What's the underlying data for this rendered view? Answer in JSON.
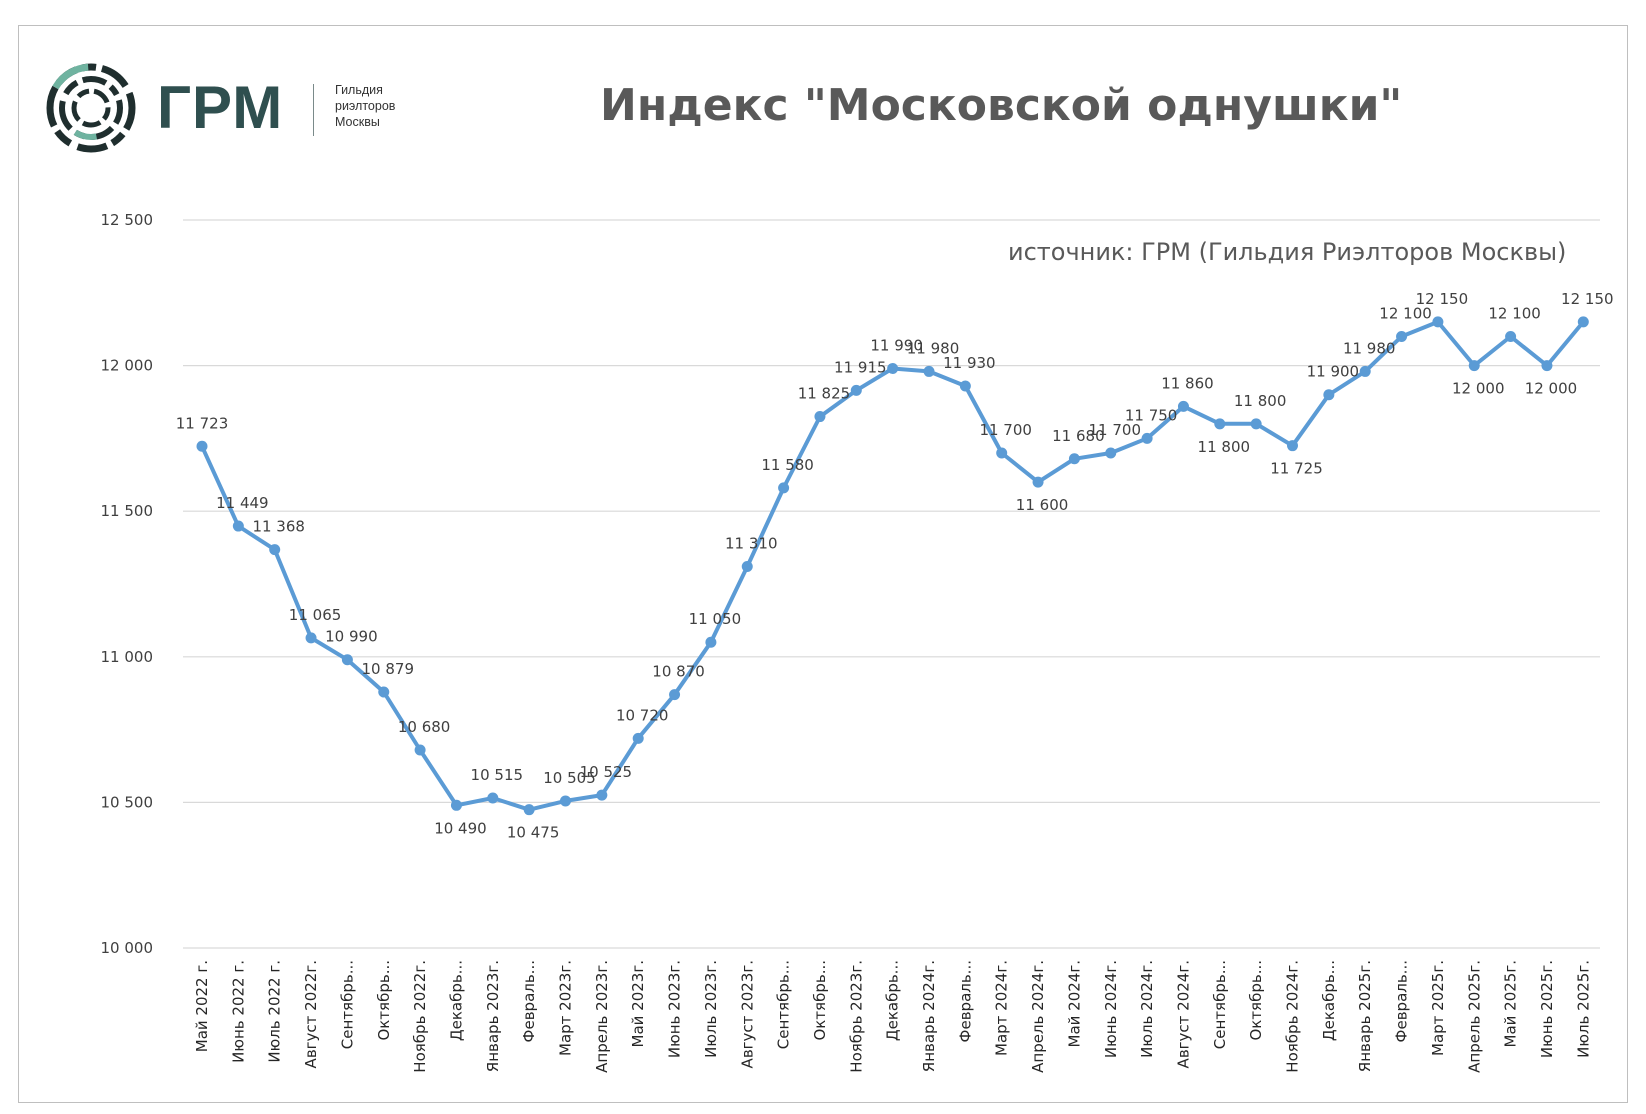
{
  "logo": {
    "name": "ГРМ",
    "subtitle": [
      "Гильдия",
      "риэлторов",
      "Москвы"
    ]
  },
  "header": {
    "title": "Индекс \"Московской однушки\"",
    "source": "источник: ГРМ (Гильдия Риэлторов Москвы)"
  },
  "colors": {
    "series": "#5b9bd5",
    "text": "#595959",
    "grid": "#d9d9d9",
    "brand": "#2f4f4f",
    "brand_accent": "#6fb3a0"
  },
  "chart_data": {
    "type": "line",
    "title": "Индекс \"Московской однушки\"",
    "xlabel": "",
    "ylabel": "",
    "ylim": [
      10000,
      12500
    ],
    "yticks": [
      10000,
      10500,
      11000,
      11500,
      12000,
      12500
    ],
    "ytick_labels": [
      "10 000",
      "10 500",
      "11 000",
      "11 500",
      "12 000",
      "12 500"
    ],
    "grid": true,
    "legend": "none",
    "categories": [
      "Май 2022 г.",
      "Июнь 2022 г.",
      "Июль 2022 г.",
      "Август 2022г.",
      "Сентябрь...",
      "Октябрь...",
      "Ноябрь 2022г.",
      "Декабрь...",
      "Январь 2023г.",
      "Февраль...",
      "Март 2023г.",
      "Апрель 2023г.",
      "Май 2023г.",
      "Июнь 2023г.",
      "Июль 2023г.",
      "Август 2023г.",
      "Сентябрь...",
      "Октябрь...",
      "Ноябрь 2023г.",
      "Декабрь...",
      "Январь 2024г.",
      "Февраль...",
      "Март 2024г.",
      "Апрель 2024г.",
      "Май 2024г.",
      "Июнь 2024г.",
      "Июль 2024г.",
      "Август 2024г.",
      "Сентябрь...",
      "Октябрь...",
      "Ноябрь 2024г.",
      "Декабрь...",
      "Январь 2025г.",
      "Февраль...",
      "Март 2025г.",
      "Апрель 2025г.",
      "Май 2025г.",
      "Июнь 2025г.",
      "Июль 2025г."
    ],
    "series": [
      {
        "values": [
          11723,
          11449,
          11368,
          11065,
          10990,
          10879,
          10680,
          10490,
          10515,
          10475,
          10505,
          10525,
          10720,
          10870,
          11050,
          11310,
          11580,
          11825,
          11915,
          11990,
          11980,
          11930,
          11700,
          11600,
          11680,
          11700,
          11750,
          11860,
          11800,
          11800,
          11725,
          11900,
          11980,
          12100,
          12150,
          12000,
          12100,
          12000,
          12150
        ],
        "labels": [
          "11 723",
          "11 449",
          "11 368",
          "11 065",
          "10 990",
          "10 879",
          "10 680",
          "10 490",
          "10 515",
          "10 475",
          "10 505",
          "10 525",
          "10 720",
          "10 870",
          "11 050",
          "11 310",
          "11 580",
          "11 825",
          "11 915",
          "11 990",
          "11 980",
          "11 930",
          "11 700",
          "11 600",
          "11 680",
          "11 700",
          "11 750",
          "11 860",
          "11 800",
          "11 800",
          "11 725",
          "11 900",
          "11 980",
          "12 100",
          "12 150",
          "12 000",
          "12 100",
          "12 000",
          "12 150"
        ]
      }
    ]
  }
}
